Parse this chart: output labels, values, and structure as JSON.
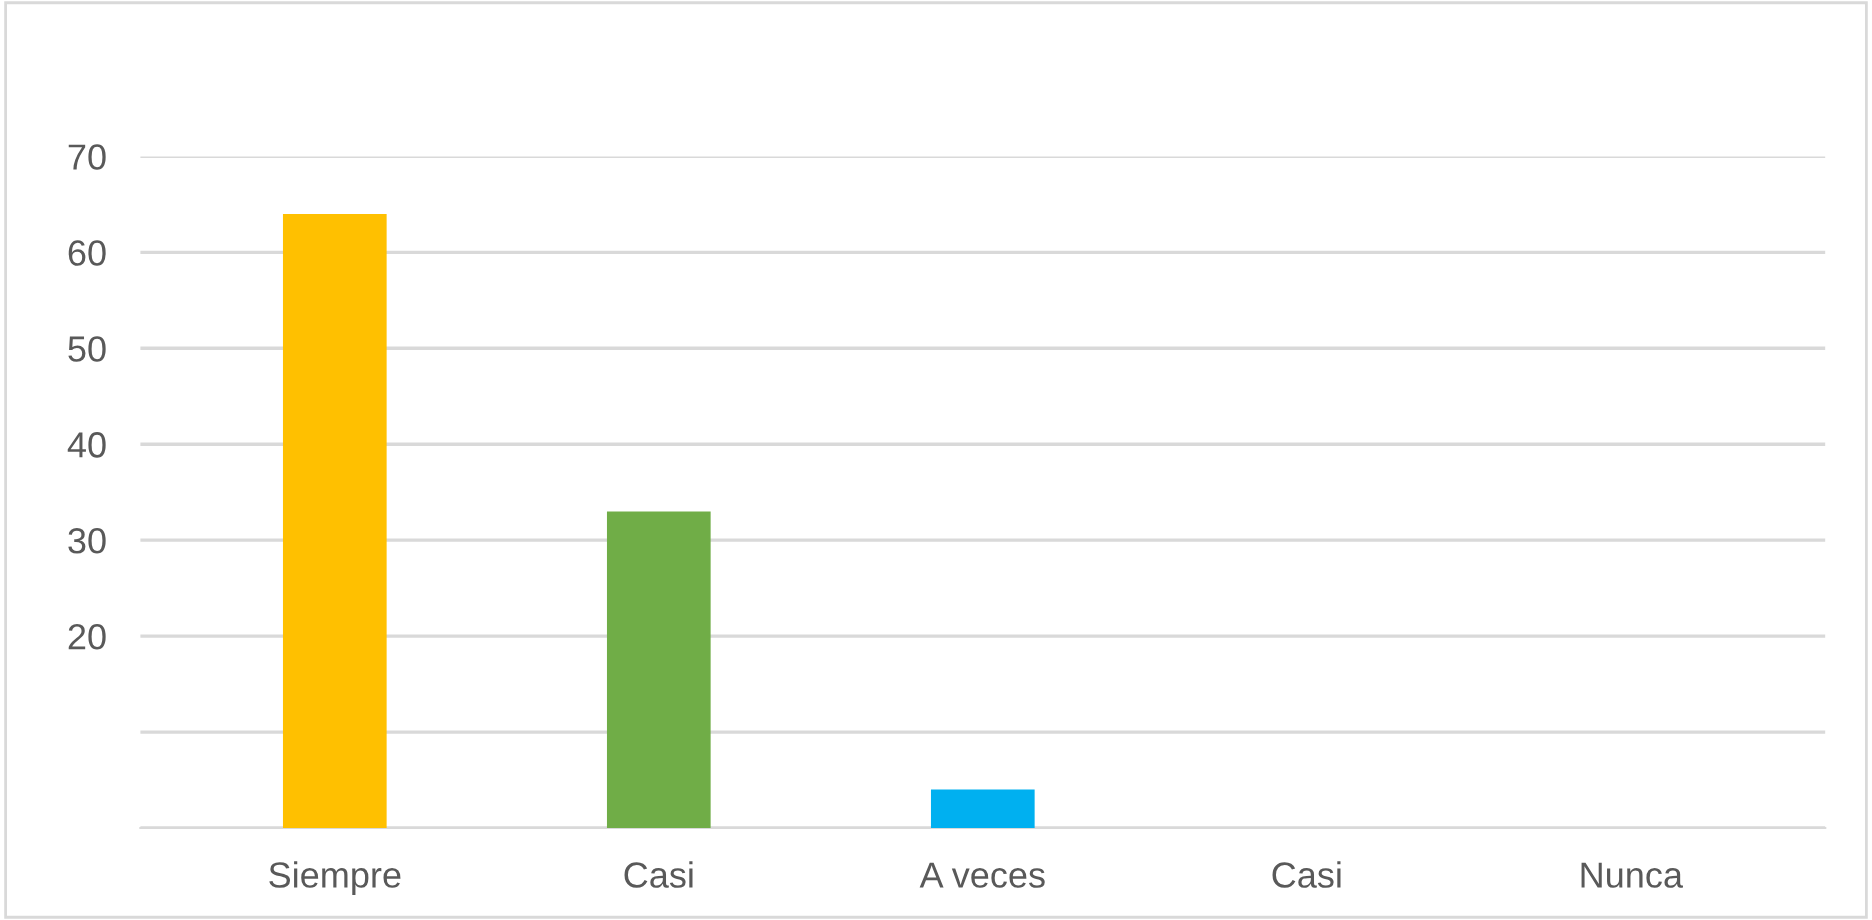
{
  "chart_data": {
    "type": "bar",
    "categories": [
      "Siempre",
      "Casi",
      "A veces",
      "Casi",
      "Nunca"
    ],
    "values": [
      64,
      33,
      4,
      0,
      0
    ],
    "colors": [
      "#ffc000",
      "#70ad47",
      "#00b0f0",
      "#4472c4",
      "#a5a5a5"
    ],
    "ylim": [
      0,
      70
    ],
    "yticks": [
      {
        "value": 0,
        "label": null
      },
      {
        "value": 10,
        "label": null
      },
      20,
      30,
      40,
      50,
      60,
      70
    ],
    "grid": "y"
  }
}
